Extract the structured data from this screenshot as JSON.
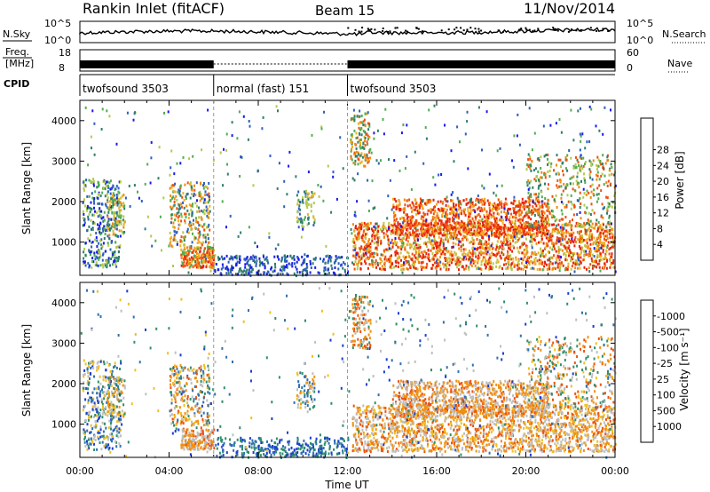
{
  "header": {
    "title": "Rankin Inlet (fitACF)",
    "beam": "Beam 15",
    "date": "11/Nov/2014"
  },
  "strip": {
    "nsky_label": "N.Sky",
    "nsky_ticks": [
      "10^5",
      "10^0"
    ],
    "nsearch_label": "N.Search",
    "nsearch_ticks": [
      "10^5",
      "10^0"
    ],
    "freq_label_1": "Freq.",
    "freq_label_2": "[MHz]",
    "freq_ticks": [
      "18",
      "8"
    ],
    "nave_label": "Nave",
    "nave_ticks": [
      "60",
      "0"
    ],
    "cpid_label": "CPID"
  },
  "cpid_segments": [
    {
      "start_h": 0,
      "end_h": 6,
      "label": "twofsound 3503"
    },
    {
      "start_h": 6,
      "end_h": 12,
      "label": "normal (fast) 151"
    },
    {
      "start_h": 12,
      "end_h": 24,
      "label": "twofsound 3503"
    }
  ],
  "chart_data": [
    {
      "type": "heatmap",
      "ylabel": "Slant Range [km]",
      "xlabel": "",
      "xlim_h": [
        0,
        24
      ],
      "ylim": [
        180,
        4500
      ],
      "yticks": [
        1000,
        2000,
        3000,
        4000
      ],
      "colorbar": {
        "label": "Power [dB]",
        "ticks": [
          "4",
          "8",
          "12",
          "16",
          "20",
          "24",
          "28"
        ],
        "colors": [
          "#1a1aee",
          "#2e5fc0",
          "#2f7f6a",
          "#4fae4f",
          "#b5c94a",
          "#f0b020",
          "#f08a10",
          "#f05010",
          "#e82010"
        ]
      }
    },
    {
      "type": "heatmap",
      "ylabel": "Slant Range [km]",
      "xlabel": "Time UT",
      "xlim_h": [
        0,
        24
      ],
      "ylim": [
        180,
        4500
      ],
      "yticks": [
        1000,
        2000,
        3000,
        4000
      ],
      "xticks": [
        "00:00",
        "04:00",
        "08:00",
        "12:00",
        "16:00",
        "20:00",
        "00:00"
      ],
      "colorbar": {
        "label": "Velocity [m s⁻¹]",
        "ticks": [
          "1000",
          "500",
          "100",
          "25",
          "-25",
          "-100",
          "-500",
          "-1000"
        ],
        "colors": [
          "#1a3fd0",
          "#3070b0",
          "#2f8f6a",
          "#60c040",
          "#bfbfbf",
          "#f0c020",
          "#f09010",
          "#f05010",
          "#e81010"
        ]
      }
    }
  ]
}
